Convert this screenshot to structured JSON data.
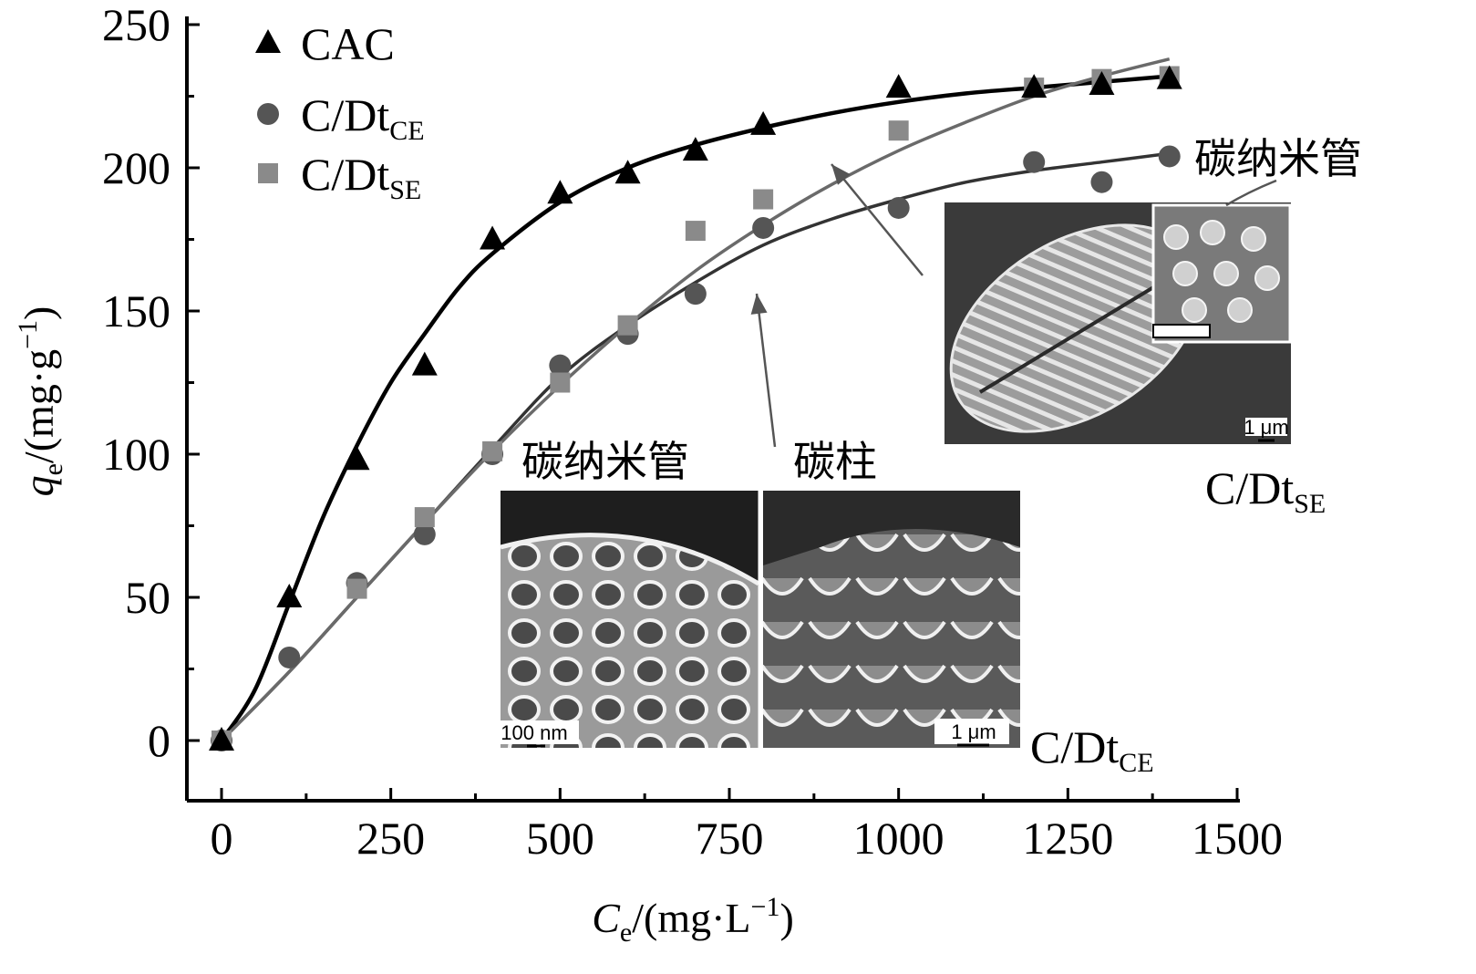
{
  "chart_data": {
    "type": "scatter",
    "xlabel": {
      "main": "C",
      "sub": "e",
      "unit": "/(mg·L",
      "sup": "−1",
      "close": ")"
    },
    "ylabel": {
      "main": "q",
      "sub": "e",
      "unit": "/(mg·g",
      "sup": "−1",
      "close": ")"
    },
    "xlim": [
      0,
      1500
    ],
    "ylim": [
      0,
      250
    ],
    "xticks": [
      "0",
      "250",
      "500",
      "750",
      "1000",
      "1250",
      "1500"
    ],
    "yticks": [
      "0",
      "50",
      "100",
      "150",
      "200",
      "250"
    ],
    "legend_placement": "top-left",
    "series": [
      {
        "name": "CAC",
        "marker": "triangle",
        "color": "#000000",
        "x": [
          0,
          100,
          200,
          300,
          400,
          500,
          600,
          700,
          800,
          1000,
          1200,
          1300,
          1400
        ],
        "y": [
          0,
          50,
          98,
          131,
          175,
          191,
          198,
          206,
          215,
          228,
          228,
          229,
          231
        ],
        "fit_x": [
          0,
          50,
          100,
          150,
          200,
          250,
          300,
          350,
          400,
          500,
          600,
          700,
          800,
          900,
          1000,
          1100,
          1200,
          1300,
          1400
        ],
        "fit_y": [
          0,
          18,
          48,
          78,
          103,
          125,
          142,
          158,
          170,
          188,
          200,
          208,
          214,
          219,
          223,
          226,
          228,
          230,
          232
        ]
      },
      {
        "name": "C/Dt",
        "name_sub": "CE",
        "marker": "circle",
        "color": "#555555",
        "x": [
          0,
          100,
          200,
          300,
          400,
          500,
          600,
          700,
          800,
          1000,
          1200,
          1300,
          1400
        ],
        "y": [
          0,
          29,
          55,
          72,
          100,
          131,
          142,
          156,
          179,
          186,
          202,
          195,
          204
        ],
        "fit_x": [
          0,
          100,
          200,
          300,
          400,
          500,
          600,
          700,
          800,
          900,
          1000,
          1100,
          1200,
          1300,
          1400
        ],
        "fit_y": [
          0,
          24,
          50,
          76,
          102,
          127,
          145,
          160,
          173,
          182,
          189,
          195,
          199,
          202,
          205
        ]
      },
      {
        "name": "C/Dt",
        "name_sub": "SE",
        "marker": "square",
        "color": "#8a8a8a",
        "x": [
          0,
          200,
          300,
          400,
          500,
          600,
          700,
          800,
          1000,
          1200,
          1300,
          1400
        ],
        "y": [
          0,
          53,
          78,
          101,
          125,
          145,
          178,
          189,
          213,
          228,
          231,
          232
        ],
        "fit_x": [
          0,
          100,
          200,
          300,
          400,
          500,
          600,
          700,
          800,
          900,
          1000,
          1100,
          1200,
          1300,
          1400
        ],
        "fit_y": [
          0,
          24,
          50,
          76,
          101,
          124,
          145,
          164,
          180,
          194,
          206,
          216,
          225,
          232,
          238
        ]
      }
    ],
    "annotations": {
      "cnt_top": "碳纳米管",
      "cnt_bottom": "碳纳米管",
      "pillar": "碳柱",
      "se_label": {
        "main": "C/Dt",
        "sub": "SE"
      },
      "ce_label": {
        "main": "C/Dt",
        "sub": "CE"
      },
      "scale_1um_top": "1 μm",
      "scale_100nm": "100 nm",
      "scale_1um_bottom": "1 μm"
    }
  }
}
